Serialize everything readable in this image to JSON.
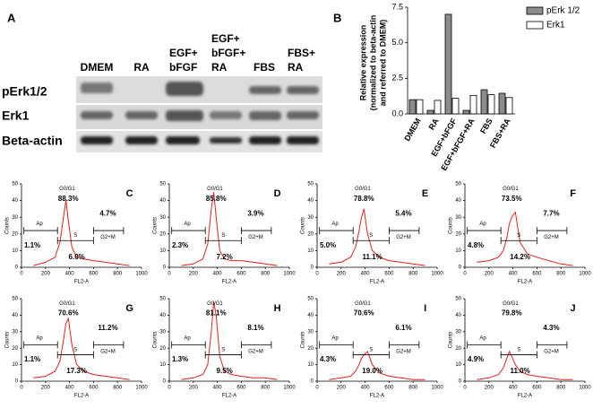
{
  "panel_a": {
    "label": "A",
    "lanes": [
      [
        "DMEM"
      ],
      [
        "RA"
      ],
      [
        "EGF+",
        "bFGF"
      ],
      [
        "EGF+",
        "bFGF+",
        "RA"
      ],
      [
        "FBS"
      ],
      [
        "FBS+",
        "RA"
      ]
    ],
    "rows": [
      "pErk1/2",
      "Erk1",
      "Beta-actin"
    ]
  },
  "chart_data": [
    {
      "type": "bar",
      "label": "B",
      "ylabel": [
        "Relative expression",
        "(normalized to beta-actin",
        "and referred to DMEM)"
      ],
      "categories": [
        "DMEM",
        "RA",
        "EGF+bFGF",
        "EGF+bFGF+RA",
        "FBS",
        "FBS+RA"
      ],
      "series": [
        {
          "name": "pErk 1/2",
          "color": "#8c8c8c",
          "values": [
            1.0,
            0.25,
            7.0,
            0.25,
            1.7,
            1.45
          ]
        },
        {
          "name": "Erk1",
          "color": "#ffffff",
          "values": [
            1.0,
            0.95,
            1.1,
            1.3,
            1.35,
            1.15
          ]
        }
      ],
      "ylim": [
        0,
        7.5
      ],
      "yticks": [
        {
          "value": 0,
          "label": "0.0"
        },
        {
          "value": 2.5,
          "label": "2.5"
        },
        {
          "value": 5,
          "label": "5.0"
        },
        {
          "value": 7.5,
          "label": "7.5"
        }
      ],
      "legend": "upper right"
    },
    {
      "type": "line",
      "label": "C",
      "xlabel": "FL2-A",
      "ylabel": "Counts",
      "color": "#e02020",
      "xlim": [
        0,
        1000
      ],
      "ylim": [
        0,
        50
      ],
      "xticks": [
        0,
        200,
        400,
        600,
        800,
        1000
      ],
      "yticks": [
        0,
        10,
        20,
        30,
        40,
        50
      ],
      "x": [
        100,
        200,
        280,
        320,
        350,
        370,
        390,
        420,
        460,
        520,
        600,
        700,
        800,
        900
      ],
      "values": [
        1,
        3,
        6,
        15,
        30,
        40,
        28,
        12,
        6,
        5,
        4,
        3,
        2,
        1
      ],
      "annotations": {
        "phase_label": "G0/G1",
        "g0g1": "88.3%",
        "ap_label": "Ap",
        "ap": "1.1%",
        "s_label": "S",
        "s": "6.0%",
        "g2m_label": "G2+M",
        "g2m": "4.7%"
      }
    },
    {
      "type": "line",
      "label": "D",
      "xlabel": "FL2-A",
      "ylabel": "Counts",
      "color": "#e02020",
      "xlim": [
        0,
        1000
      ],
      "ylim": [
        0,
        50
      ],
      "xticks": [
        0,
        200,
        400,
        600,
        800,
        1000
      ],
      "yticks": [
        0,
        10,
        20,
        30,
        40,
        50
      ],
      "x": [
        100,
        200,
        280,
        320,
        350,
        370,
        390,
        420,
        460,
        520,
        600,
        700,
        800,
        900
      ],
      "values": [
        1,
        2,
        5,
        14,
        35,
        45,
        30,
        10,
        5,
        4,
        4,
        3,
        2,
        1
      ],
      "annotations": {
        "phase_label": "G0/G1",
        "g0g1": "85.8%",
        "ap_label": "Ap",
        "ap": "2.3%",
        "s_label": "S",
        "s": "7.2%",
        "g2m_label": "G2+M",
        "g2m": "3.9%"
      }
    },
    {
      "type": "line",
      "label": "E",
      "xlabel": "FL2-A",
      "ylabel": "Counts",
      "color": "#e02020",
      "xlim": [
        0,
        1000
      ],
      "ylim": [
        0,
        50
      ],
      "xticks": [
        0,
        200,
        400,
        600,
        800,
        1000
      ],
      "yticks": [
        0,
        10,
        20,
        30,
        40,
        50
      ],
      "x": [
        100,
        200,
        280,
        320,
        350,
        370,
        390,
        420,
        460,
        520,
        600,
        700,
        800,
        900
      ],
      "values": [
        2,
        3,
        6,
        12,
        22,
        30,
        35,
        20,
        10,
        6,
        4,
        3,
        2,
        1
      ],
      "annotations": {
        "phase_label": "G0/G1",
        "g0g1": "78.8%",
        "ap_label": "Ap",
        "ap": "5.0%",
        "s_label": "S",
        "s": "11.1%",
        "g2m_label": "G2+M",
        "g2m": "5.4%"
      }
    },
    {
      "type": "line",
      "label": "F",
      "xlabel": "FL2-A",
      "ylabel": "Counts",
      "color": "#e02020",
      "xlim": [
        0,
        1000
      ],
      "ylim": [
        0,
        50
      ],
      "xticks": [
        0,
        200,
        400,
        600,
        800,
        1000
      ],
      "yticks": [
        0,
        10,
        20,
        30,
        40,
        50
      ],
      "x": [
        100,
        200,
        280,
        320,
        350,
        370,
        390,
        420,
        460,
        520,
        600,
        700,
        800,
        900
      ],
      "values": [
        3,
        4,
        6,
        10,
        18,
        26,
        30,
        33,
        15,
        8,
        6,
        4,
        2,
        1
      ],
      "annotations": {
        "phase_label": "G0/G1",
        "g0g1": "73.5%",
        "ap_label": "Ap",
        "ap": "4.8%",
        "s_label": "S",
        "s": "14.2%",
        "g2m_label": "G2+M",
        "g2m": "7.7%"
      }
    },
    {
      "type": "line",
      "label": "G",
      "xlabel": "FL2-A",
      "ylabel": "Counts",
      "color": "#e02020",
      "xlim": [
        0,
        1000
      ],
      "ylim": [
        0,
        50
      ],
      "xticks": [
        0,
        200,
        400,
        600,
        800,
        1000
      ],
      "yticks": [
        0,
        10,
        20,
        30,
        40,
        50
      ],
      "x": [
        100,
        200,
        280,
        320,
        350,
        370,
        390,
        420,
        460,
        520,
        600,
        700,
        800,
        900
      ],
      "values": [
        2,
        3,
        6,
        12,
        25,
        35,
        38,
        22,
        10,
        6,
        4,
        3,
        2,
        1
      ],
      "annotations": {
        "phase_label": "G0/G1",
        "g0g1": "70.6%",
        "ap_label": "Ap",
        "ap": "1.1%",
        "s_label": "S",
        "s": "17.3%",
        "g2m_label": "G2+M",
        "g2m": "11.2%"
      }
    },
    {
      "type": "line",
      "label": "H",
      "xlabel": "FL2-A",
      "ylabel": "Counts",
      "color": "#e02020",
      "xlim": [
        0,
        1000
      ],
      "ylim": [
        0,
        50
      ],
      "xticks": [
        0,
        200,
        400,
        600,
        800,
        1000
      ],
      "yticks": [
        0,
        10,
        20,
        30,
        40,
        50
      ],
      "x": [
        100,
        200,
        280,
        320,
        350,
        370,
        390,
        420,
        460,
        520,
        600,
        700,
        800,
        900
      ],
      "values": [
        1,
        2,
        4,
        10,
        30,
        48,
        40,
        15,
        6,
        4,
        3,
        2,
        2,
        1
      ],
      "annotations": {
        "phase_label": "G0/G1",
        "g0g1": "81.1%",
        "ap_label": "Ap",
        "ap": "1.3%",
        "s_label": "S",
        "s": "9.5%",
        "g2m_label": "G2+M",
        "g2m": "8.1%"
      }
    },
    {
      "type": "line",
      "label": "I",
      "xlabel": "FL2-A",
      "ylabel": "Counts",
      "color": "#e02020",
      "xlim": [
        0,
        1000
      ],
      "ylim": [
        0,
        50
      ],
      "xticks": [
        0,
        200,
        400,
        600,
        800,
        1000
      ],
      "yticks": [
        0,
        10,
        20,
        30,
        40,
        50
      ],
      "x": [
        100,
        200,
        280,
        320,
        350,
        370,
        390,
        420,
        460,
        520,
        600,
        700,
        800,
        900
      ],
      "values": [
        1,
        2,
        3,
        6,
        10,
        14,
        16,
        18,
        10,
        5,
        3,
        2,
        1,
        1
      ],
      "annotations": {
        "phase_label": "G0/G1",
        "g0g1": "70.6%",
        "ap_label": "Ap",
        "ap": "4.3%",
        "s_label": "S",
        "s": "19.0%",
        "g2m_label": "G2+M",
        "g2m": "6.1%"
      }
    },
    {
      "type": "line",
      "label": "J",
      "xlabel": "FL2-A",
      "ylabel": "Counts",
      "color": "#e02020",
      "xlim": [
        0,
        1000
      ],
      "ylim": [
        0,
        50
      ],
      "xticks": [
        0,
        200,
        400,
        600,
        800,
        1000
      ],
      "yticks": [
        0,
        10,
        20,
        30,
        40,
        50
      ],
      "x": [
        100,
        200,
        280,
        320,
        350,
        370,
        390,
        420,
        460,
        520,
        600,
        700,
        800,
        900
      ],
      "values": [
        1,
        2,
        4,
        8,
        14,
        18,
        15,
        10,
        6,
        4,
        3,
        2,
        1,
        1
      ],
      "annotations": {
        "phase_label": "G0/G1",
        "g0g1": "79.8%",
        "ap_label": "Ap",
        "ap": "4.9%",
        "s_label": "S",
        "s": "11.0%",
        "g2m_label": "G2+M",
        "g2m": "4.3%"
      }
    }
  ]
}
